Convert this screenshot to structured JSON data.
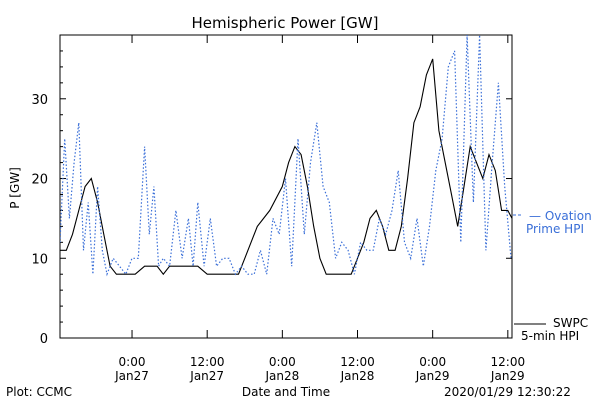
{
  "chart_data": {
    "type": "line",
    "title": "Hemispheric Power [GW]",
    "xlabel": "Date and Time",
    "ylabel": "P [GW]",
    "ylim": [
      0,
      38
    ],
    "xlim": [
      "2020-01-26 12:30",
      "2020-01-29 12:40"
    ],
    "yticks": [
      0,
      10,
      20,
      30
    ],
    "xticks": [
      {
        "x": "2020-01-27 00:00",
        "time": "0:00",
        "date": "Jan27"
      },
      {
        "x": "2020-01-27 12:00",
        "time": "12:00",
        "date": "Jan27"
      },
      {
        "x": "2020-01-28 00:00",
        "time": "0:00",
        "date": "Jan28"
      },
      {
        "x": "2020-01-28 12:00",
        "time": "12:00",
        "date": "Jan28"
      },
      {
        "x": "2020-01-29 00:00",
        "time": "0:00",
        "date": "Jan29"
      },
      {
        "x": "2020-01-29 12:00",
        "time": "12:00",
        "date": "Jan29"
      }
    ],
    "grid": false,
    "legend_position": "right",
    "series": [
      {
        "name": "SWPC 5-min HPI",
        "legend_lines": [
          "SWPC",
          "5-min HPI"
        ],
        "color": "#000000",
        "style": "solid",
        "x": [
          "2020-01-26 12:30",
          "2020-01-26 13:30",
          "2020-01-26 14:30",
          "2020-01-26 15:30",
          "2020-01-26 16:30",
          "2020-01-26 17:30",
          "2020-01-26 18:30",
          "2020-01-26 19:30",
          "2020-01-26 20:30",
          "2020-01-26 21:30",
          "2020-01-26 22:30",
          "2020-01-26 23:30",
          "2020-01-27 00:30",
          "2020-01-27 02:00",
          "2020-01-27 04:00",
          "2020-01-27 05:00",
          "2020-01-27 06:00",
          "2020-01-27 07:00",
          "2020-01-27 08:00",
          "2020-01-27 09:00",
          "2020-01-27 10:30",
          "2020-01-27 12:00",
          "2020-01-27 14:00",
          "2020-01-27 16:00",
          "2020-01-27 17:00",
          "2020-01-27 18:00",
          "2020-01-27 20:00",
          "2020-01-27 22:00",
          "2020-01-28 00:00",
          "2020-01-28 01:00",
          "2020-01-28 02:00",
          "2020-01-28 03:00",
          "2020-01-28 04:00",
          "2020-01-28 05:00",
          "2020-01-28 06:00",
          "2020-01-28 07:00",
          "2020-01-28 08:00",
          "2020-01-28 09:00",
          "2020-01-28 10:00",
          "2020-01-28 11:00",
          "2020-01-28 12:00",
          "2020-01-28 13:00",
          "2020-01-28 14:00",
          "2020-01-28 15:00",
          "2020-01-28 16:00",
          "2020-01-28 17:00",
          "2020-01-28 18:00",
          "2020-01-28 19:00",
          "2020-01-28 20:00",
          "2020-01-28 21:00",
          "2020-01-28 22:00",
          "2020-01-28 23:00",
          "2020-01-29 00:00",
          "2020-01-29 01:00",
          "2020-01-29 02:00",
          "2020-01-29 03:00",
          "2020-01-29 04:00",
          "2020-01-29 05:00",
          "2020-01-29 06:00",
          "2020-01-29 07:00",
          "2020-01-29 08:00",
          "2020-01-29 09:00",
          "2020-01-29 10:00",
          "2020-01-29 11:00",
          "2020-01-29 12:00",
          "2020-01-29 12:40"
        ],
        "y": [
          11,
          11,
          13,
          16,
          19,
          20,
          17,
          13,
          9,
          8,
          8,
          8,
          8,
          9,
          9,
          8,
          9,
          9,
          9,
          9,
          9,
          8,
          8,
          8,
          8,
          10,
          14,
          16,
          19,
          22,
          24,
          23,
          19,
          14,
          10,
          8,
          8,
          8,
          8,
          8,
          10,
          12,
          15,
          16,
          14,
          11,
          11,
          14,
          20,
          27,
          29,
          33,
          35,
          26,
          22,
          18,
          14,
          19,
          24,
          22,
          20,
          23,
          21,
          16,
          16,
          15
        ]
      },
      {
        "name": "Ovation Prime HPI",
        "legend_lines": [
          "— Ovation",
          "Prime HPI"
        ],
        "color": "#3a6fd8",
        "style": "dotted",
        "x": [
          "2020-01-26 12:30",
          "2020-01-26 13:15",
          "2020-01-26 14:00",
          "2020-01-26 14:45",
          "2020-01-26 15:30",
          "2020-01-26 16:15",
          "2020-01-26 17:00",
          "2020-01-26 17:45",
          "2020-01-26 18:30",
          "2020-01-26 19:15",
          "2020-01-26 20:00",
          "2020-01-26 21:00",
          "2020-01-26 22:00",
          "2020-01-26 23:00",
          "2020-01-27 00:00",
          "2020-01-27 01:00",
          "2020-01-27 02:00",
          "2020-01-27 02:45",
          "2020-01-27 03:30",
          "2020-01-27 04:15",
          "2020-01-27 05:00",
          "2020-01-27 06:00",
          "2020-01-27 07:00",
          "2020-01-27 08:00",
          "2020-01-27 09:00",
          "2020-01-27 09:45",
          "2020-01-27 10:30",
          "2020-01-27 11:30",
          "2020-01-27 12:30",
          "2020-01-27 13:30",
          "2020-01-27 14:30",
          "2020-01-27 15:30",
          "2020-01-27 16:30",
          "2020-01-27 17:30",
          "2020-01-27 18:30",
          "2020-01-27 19:30",
          "2020-01-27 20:30",
          "2020-01-27 21:30",
          "2020-01-27 22:30",
          "2020-01-27 23:30",
          "2020-01-28 00:30",
          "2020-01-28 01:30",
          "2020-01-28 02:30",
          "2020-01-28 03:30",
          "2020-01-28 04:30",
          "2020-01-28 05:30",
          "2020-01-28 06:30",
          "2020-01-28 07:30",
          "2020-01-28 08:30",
          "2020-01-28 09:30",
          "2020-01-28 10:30",
          "2020-01-28 11:30",
          "2020-01-28 12:30",
          "2020-01-28 13:30",
          "2020-01-28 14:30",
          "2020-01-28 15:30",
          "2020-01-28 16:30",
          "2020-01-28 17:30",
          "2020-01-28 18:30",
          "2020-01-28 19:30",
          "2020-01-28 20:30",
          "2020-01-28 21:30",
          "2020-01-28 22:30",
          "2020-01-28 23:30",
          "2020-01-29 00:30",
          "2020-01-29 01:30",
          "2020-01-29 02:30",
          "2020-01-29 03:30",
          "2020-01-29 04:30",
          "2020-01-29 05:30",
          "2020-01-29 06:30",
          "2020-01-29 07:30",
          "2020-01-29 08:30",
          "2020-01-29 09:30",
          "2020-01-29 10:30",
          "2020-01-29 11:30",
          "2020-01-29 12:30"
        ],
        "y": [
          12,
          25,
          15,
          22,
          27,
          11,
          17,
          8,
          19,
          11,
          8,
          10,
          9,
          8,
          10,
          10,
          24,
          13,
          19,
          9,
          10,
          9,
          16,
          10,
          15,
          9,
          17,
          9,
          15,
          9,
          10,
          10,
          8,
          9,
          8,
          8,
          11,
          8,
          15,
          13,
          20,
          9,
          25,
          13,
          22,
          27,
          19,
          17,
          10,
          12,
          11,
          8,
          12,
          11,
          11,
          15,
          13,
          16,
          21,
          12,
          10,
          15,
          9,
          14,
          21,
          25,
          34,
          36,
          12,
          38,
          17,
          38,
          11,
          22,
          32,
          19,
          10
        ]
      }
    ]
  },
  "footer": {
    "left": "Plot: CCMC",
    "timestamp": "2020/01/29 12:30:22"
  }
}
